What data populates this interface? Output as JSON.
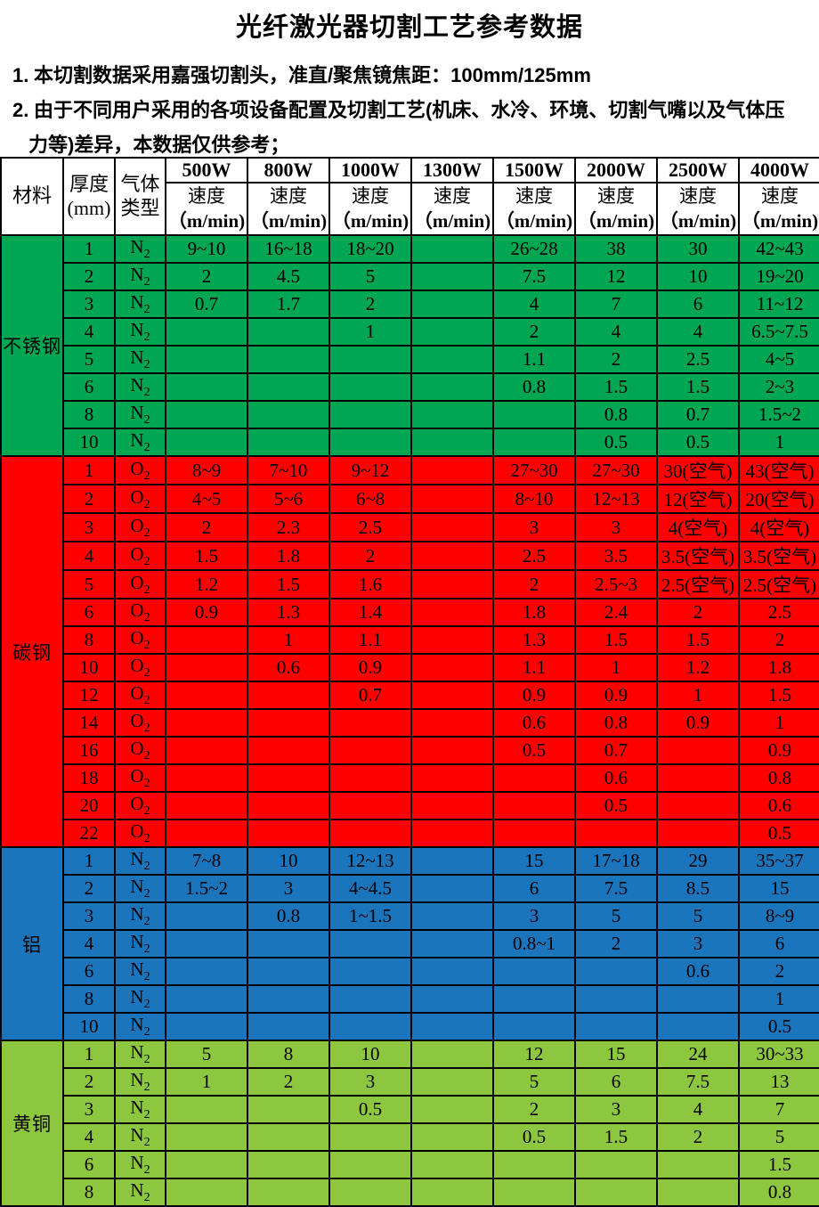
{
  "title": "光纤激光器切割工艺参考数据",
  "notes": [
    {
      "num": "1.",
      "lines": [
        "本切割数据采用嘉强切割头，准直/聚焦镜焦距：100mm/125mm"
      ]
    },
    {
      "num": "2.",
      "lines": [
        "由于不同用户采用的各项设备配置及切割工艺(机床、水冷、环境、切割气嘴以及气体压",
        "力等)差异，本数据仅供参考；"
      ]
    }
  ],
  "table": {
    "headers": {
      "material": "材料",
      "thickness_line1": "厚度",
      "thickness_line2": "(mm)",
      "gas_line1": "气体",
      "gas_line2": "类型",
      "speed_label": "速度",
      "speed_unit": "（m/min)"
    },
    "powers": [
      "500W",
      "800W",
      "1000W",
      "1300W",
      "1500W",
      "2000W",
      "2500W",
      "4000W"
    ]
  },
  "colors": {
    "stainless_green": "#00A651",
    "carbon_red": "#FF0000",
    "aluminum_blue": "#1B75BC",
    "brass_green": "#8DC63F",
    "grid_border": "#000000"
  },
  "materials": [
    {
      "name": "不锈钢",
      "color": "#00A651",
      "gas": "N",
      "gas_sub": "2",
      "rows": [
        {
          "t": "1",
          "v": [
            "9~10",
            "16~18",
            "18~20",
            "",
            "26~28",
            "38",
            "30",
            "42~43"
          ]
        },
        {
          "t": "2",
          "v": [
            "2",
            "4.5",
            "5",
            "",
            "7.5",
            "12",
            "10",
            "19~20"
          ]
        },
        {
          "t": "3",
          "v": [
            "0.7",
            "1.7",
            "2",
            "",
            "4",
            "7",
            "6",
            "11~12"
          ]
        },
        {
          "t": "4",
          "v": [
            "",
            "",
            "1",
            "",
            "2",
            "4",
            "4",
            "6.5~7.5"
          ]
        },
        {
          "t": "5",
          "v": [
            "",
            "",
            "",
            "",
            "1.1",
            "2",
            "2.5",
            "4~5"
          ]
        },
        {
          "t": "6",
          "v": [
            "",
            "",
            "",
            "",
            "0.8",
            "1.5",
            "1.5",
            "2~3"
          ]
        },
        {
          "t": "8",
          "v": [
            "",
            "",
            "",
            "",
            "",
            "0.8",
            "0.7",
            "1.5~2"
          ]
        },
        {
          "t": "10",
          "v": [
            "",
            "",
            "",
            "",
            "",
            "0.5",
            "0.5",
            "1"
          ]
        }
      ]
    },
    {
      "name": "碳钢",
      "color": "#FF0000",
      "gas": "O",
      "gas_sub": "2",
      "rows": [
        {
          "t": "1",
          "v": [
            "8~9",
            "7~10",
            "9~12",
            "",
            "27~30",
            "27~30",
            "30(空气)",
            "43(空气)"
          ]
        },
        {
          "t": "2",
          "v": [
            "4~5",
            "5~6",
            "6~8",
            "",
            "8~10",
            "12~13",
            "12(空气)",
            "20(空气)"
          ]
        },
        {
          "t": "3",
          "v": [
            "2",
            "2.3",
            "2.5",
            "",
            "3",
            "3",
            "4(空气)",
            "4(空气)"
          ]
        },
        {
          "t": "4",
          "v": [
            "1.5",
            "1.8",
            "2",
            "",
            "2.5",
            "3.5",
            "3.5(空气)",
            "3.5(空气)"
          ]
        },
        {
          "t": "5",
          "v": [
            "1.2",
            "1.5",
            "1.6",
            "",
            "2",
            "2.5~3",
            "2.5(空气)",
            "2.5(空气)"
          ]
        },
        {
          "t": "6",
          "v": [
            "0.9",
            "1.3",
            "1.4",
            "",
            "1.8",
            "2.4",
            "2",
            "2.5"
          ]
        },
        {
          "t": "8",
          "v": [
            "",
            "1",
            "1.1",
            "",
            "1.3",
            "1.5",
            "1.5",
            "2"
          ]
        },
        {
          "t": "10",
          "v": [
            "",
            "0.6",
            "0.9",
            "",
            "1.1",
            "1",
            "1.2",
            "1.8"
          ]
        },
        {
          "t": "12",
          "v": [
            "",
            "",
            "0.7",
            "",
            "0.9",
            "0.9",
            "1",
            "1.5"
          ]
        },
        {
          "t": "14",
          "v": [
            "",
            "",
            "",
            "",
            "0.6",
            "0.8",
            "0.9",
            "1"
          ]
        },
        {
          "t": "16",
          "v": [
            "",
            "",
            "",
            "",
            "0.5",
            "0.7",
            "",
            "0.9"
          ]
        },
        {
          "t": "18",
          "v": [
            "",
            "",
            "",
            "",
            "",
            "0.6",
            "",
            "0.8"
          ]
        },
        {
          "t": "20",
          "v": [
            "",
            "",
            "",
            "",
            "",
            "0.5",
            "",
            "0.6"
          ]
        },
        {
          "t": "22",
          "v": [
            "",
            "",
            "",
            "",
            "",
            "",
            "",
            "0.5"
          ]
        }
      ]
    },
    {
      "name": "铝",
      "color": "#1B75BC",
      "gas": "N",
      "gas_sub": "2",
      "rows": [
        {
          "t": "1",
          "v": [
            "7~8",
            "10",
            "12~13",
            "",
            "15",
            "17~18",
            "29",
            "35~37"
          ]
        },
        {
          "t": "2",
          "v": [
            "1.5~2",
            "3",
            "4~4.5",
            "",
            "6",
            "7.5",
            "8.5",
            "15"
          ]
        },
        {
          "t": "3",
          "v": [
            "",
            "0.8",
            "1~1.5",
            "",
            "3",
            "5",
            "5",
            "8~9"
          ]
        },
        {
          "t": "4",
          "v": [
            "",
            "",
            "",
            "",
            "0.8~1",
            "2",
            "3",
            "6"
          ]
        },
        {
          "t": "6",
          "v": [
            "",
            "",
            "",
            "",
            "",
            "",
            "0.6",
            "2"
          ]
        },
        {
          "t": "8",
          "v": [
            "",
            "",
            "",
            "",
            "",
            "",
            "",
            "1"
          ]
        },
        {
          "t": "10",
          "v": [
            "",
            "",
            "",
            "",
            "",
            "",
            "",
            "0.5"
          ]
        }
      ]
    },
    {
      "name": "黄铜",
      "color": "#8DC63F",
      "gas": "N",
      "gas_sub": "2",
      "rows": [
        {
          "t": "1",
          "v": [
            "5",
            "8",
            "10",
            "",
            "12",
            "15",
            "24",
            "30~33"
          ]
        },
        {
          "t": "2",
          "v": [
            "1",
            "2",
            "3",
            "",
            "5",
            "6",
            "7.5",
            "13"
          ]
        },
        {
          "t": "3",
          "v": [
            "",
            "",
            "0.5",
            "",
            "2",
            "3",
            "4",
            "7"
          ]
        },
        {
          "t": "4",
          "v": [
            "",
            "",
            "",
            "",
            "0.5",
            "1.5",
            "2",
            "5"
          ]
        },
        {
          "t": "6",
          "v": [
            "",
            "",
            "",
            "",
            "",
            "",
            "",
            "1.5"
          ]
        },
        {
          "t": "8",
          "v": [
            "",
            "",
            "",
            "",
            "",
            "",
            "",
            "0.8"
          ]
        }
      ]
    }
  ]
}
